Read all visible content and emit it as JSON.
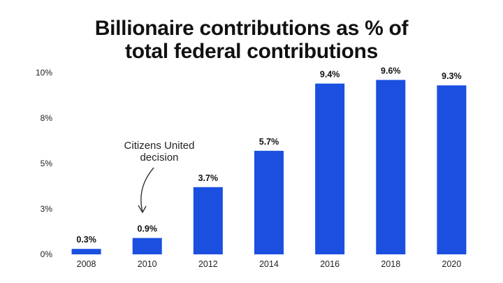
{
  "chart_data": {
    "type": "bar",
    "title_line1": "Billionaire contributions as % of",
    "title_line2": "total federal contributions",
    "categories": [
      "2008",
      "2010",
      "2012",
      "2014",
      "2016",
      "2018",
      "2020"
    ],
    "values": [
      0.3,
      0.9,
      3.7,
      5.7,
      9.4,
      9.6,
      9.3
    ],
    "data_labels": [
      "0.3%",
      "0.9%",
      "3.7%",
      "5.7%",
      "9.4%",
      "9.6%",
      "9.3%"
    ],
    "y_ticks": [
      {
        "value": 0,
        "label": "0%"
      },
      {
        "value": 2.5,
        "label": "3%"
      },
      {
        "value": 5,
        "label": "5%"
      },
      {
        "value": 7.5,
        "label": "8%"
      },
      {
        "value": 10,
        "label": "10%"
      }
    ],
    "ylim": [
      0,
      10
    ],
    "xlabel": "",
    "ylabel": "",
    "grid": false,
    "bar_color": "#1a4fe0",
    "annotation": {
      "lines": [
        "Citizens United",
        "decision"
      ],
      "target_category": "2010"
    }
  }
}
